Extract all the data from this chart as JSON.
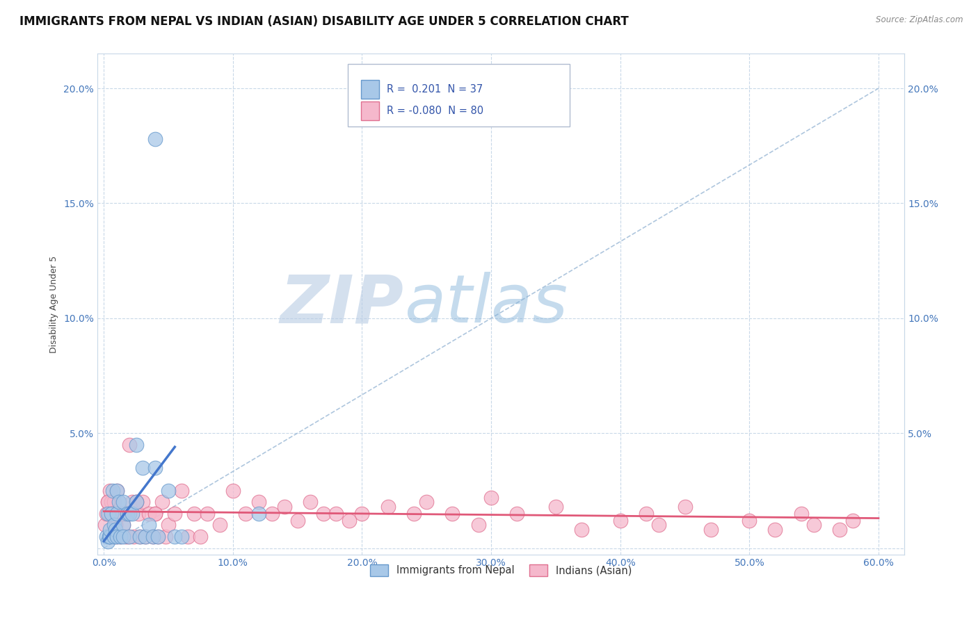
{
  "title": "IMMIGRANTS FROM NEPAL VS INDIAN (ASIAN) DISABILITY AGE UNDER 5 CORRELATION CHART",
  "source": "Source: ZipAtlas.com",
  "ylabel": "Disability Age Under 5",
  "xlim": [
    -0.005,
    0.62
  ],
  "ylim": [
    -0.003,
    0.215
  ],
  "xticks": [
    0.0,
    0.1,
    0.2,
    0.3,
    0.4,
    0.5,
    0.6
  ],
  "xticklabels": [
    "0.0%",
    "10.0%",
    "20.0%",
    "30.0%",
    "40.0%",
    "50.0%",
    "60.0%"
  ],
  "yticks": [
    0.0,
    0.05,
    0.1,
    0.15,
    0.2
  ],
  "yticklabels": [
    "",
    "5.0%",
    "10.0%",
    "15.0%",
    "20.0%"
  ],
  "nepal_color": "#a8c8e8",
  "nepal_edge": "#6699cc",
  "indian_color": "#f5b8cc",
  "indian_edge": "#e07090",
  "nepal_R": 0.201,
  "nepal_N": 37,
  "indian_R": -0.08,
  "indian_N": 80,
  "nepal_scatter_x": [
    0.002,
    0.003,
    0.003,
    0.004,
    0.005,
    0.005,
    0.006,
    0.007,
    0.008,
    0.008,
    0.009,
    0.01,
    0.01,
    0.01,
    0.012,
    0.013,
    0.015,
    0.015,
    0.015,
    0.018,
    0.02,
    0.02,
    0.022,
    0.025,
    0.025,
    0.028,
    0.03,
    0.032,
    0.035,
    0.038,
    0.04,
    0.042,
    0.05,
    0.055,
    0.06,
    0.12,
    0.04
  ],
  "nepal_scatter_y": [
    0.005,
    0.003,
    0.015,
    0.005,
    0.005,
    0.008,
    0.015,
    0.025,
    0.01,
    0.005,
    0.008,
    0.015,
    0.025,
    0.005,
    0.02,
    0.005,
    0.01,
    0.02,
    0.005,
    0.015,
    0.015,
    0.005,
    0.015,
    0.02,
    0.045,
    0.005,
    0.035,
    0.005,
    0.01,
    0.005,
    0.035,
    0.005,
    0.025,
    0.005,
    0.005,
    0.015,
    0.178
  ],
  "indian_scatter_x": [
    0.001,
    0.002,
    0.003,
    0.004,
    0.005,
    0.005,
    0.006,
    0.007,
    0.008,
    0.008,
    0.009,
    0.01,
    0.01,
    0.012,
    0.013,
    0.014,
    0.015,
    0.016,
    0.017,
    0.018,
    0.019,
    0.02,
    0.022,
    0.023,
    0.025,
    0.027,
    0.028,
    0.03,
    0.032,
    0.035,
    0.038,
    0.04,
    0.042,
    0.045,
    0.048,
    0.05,
    0.055,
    0.06,
    0.065,
    0.07,
    0.075,
    0.08,
    0.09,
    0.1,
    0.11,
    0.12,
    0.13,
    0.14,
    0.15,
    0.16,
    0.17,
    0.18,
    0.19,
    0.2,
    0.22,
    0.24,
    0.25,
    0.27,
    0.29,
    0.3,
    0.32,
    0.35,
    0.37,
    0.4,
    0.42,
    0.43,
    0.45,
    0.47,
    0.5,
    0.52,
    0.54,
    0.55,
    0.57,
    0.58,
    0.003,
    0.006,
    0.009,
    0.015,
    0.025,
    0.04
  ],
  "indian_scatter_y": [
    0.01,
    0.015,
    0.02,
    0.015,
    0.025,
    0.005,
    0.02,
    0.015,
    0.02,
    0.005,
    0.015,
    0.025,
    0.005,
    0.02,
    0.005,
    0.015,
    0.01,
    0.015,
    0.005,
    0.015,
    0.005,
    0.045,
    0.02,
    0.005,
    0.02,
    0.015,
    0.005,
    0.02,
    0.005,
    0.015,
    0.005,
    0.015,
    0.005,
    0.02,
    0.005,
    0.01,
    0.015,
    0.025,
    0.005,
    0.015,
    0.005,
    0.015,
    0.01,
    0.025,
    0.015,
    0.02,
    0.015,
    0.018,
    0.012,
    0.02,
    0.015,
    0.015,
    0.012,
    0.015,
    0.018,
    0.015,
    0.02,
    0.015,
    0.01,
    0.022,
    0.015,
    0.018,
    0.008,
    0.012,
    0.015,
    0.01,
    0.018,
    0.008,
    0.012,
    0.008,
    0.015,
    0.01,
    0.008,
    0.012,
    0.02,
    0.015,
    0.01,
    0.015,
    0.02,
    0.015
  ],
  "bg_color": "#ffffff",
  "grid_color": "#c8d8e8",
  "watermark_zip": "ZIP",
  "watermark_atlas": "atlas",
  "watermark_color_zip": "#b8cce4",
  "watermark_color_atlas": "#7fb0d8",
  "legend_labels": [
    "Immigrants from Nepal",
    "Indians (Asian)"
  ],
  "title_fontsize": 12,
  "axis_label_fontsize": 9,
  "tick_fontsize": 10,
  "legend_fontsize": 10
}
